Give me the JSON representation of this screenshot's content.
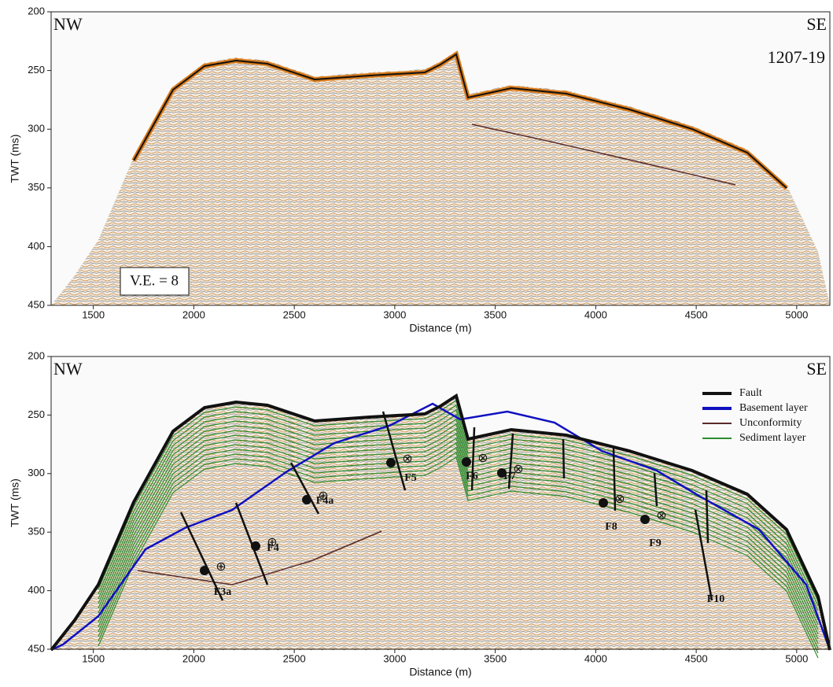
{
  "chart_data": [
    {
      "type": "seismic",
      "xlabel": "Distance (m)",
      "ylabel": "TWT (ms)",
      "xlim": [
        1290,
        5165
      ],
      "ylim": [
        450,
        200
      ],
      "xticks": [
        1500,
        2000,
        2500,
        3000,
        3500,
        4000,
        4500,
        5000
      ],
      "yticks": [
        200,
        250,
        300,
        350,
        400,
        450
      ],
      "annotations": [
        "NW",
        "SE",
        "1207-19",
        "V.E. = 8"
      ]
    },
    {
      "type": "seismic-interpreted",
      "xlabel": "Distance (m)",
      "ylabel": "TWT (ms)",
      "xlim": [
        1290,
        5165
      ],
      "ylim": [
        450,
        200
      ],
      "xticks": [
        1500,
        2000,
        2500,
        3000,
        3500,
        4000,
        4500,
        5000
      ],
      "yticks": [
        200,
        250,
        300,
        350,
        400,
        450
      ],
      "annotations": [
        "NW",
        "SE"
      ],
      "fault_labels": [
        "F3a",
        "F4",
        "F4a",
        "F5",
        "F6",
        "F7",
        "F8",
        "F9",
        "F10"
      ],
      "legend": [
        {
          "name": "Fault",
          "color": "#111111"
        },
        {
          "name": "Basement layer",
          "color": "#1010c0"
        },
        {
          "name": "Unconformity",
          "color": "#5a2a2a"
        },
        {
          "name": "Sediment layer",
          "color": "#2e8b2e"
        }
      ]
    }
  ]
}
